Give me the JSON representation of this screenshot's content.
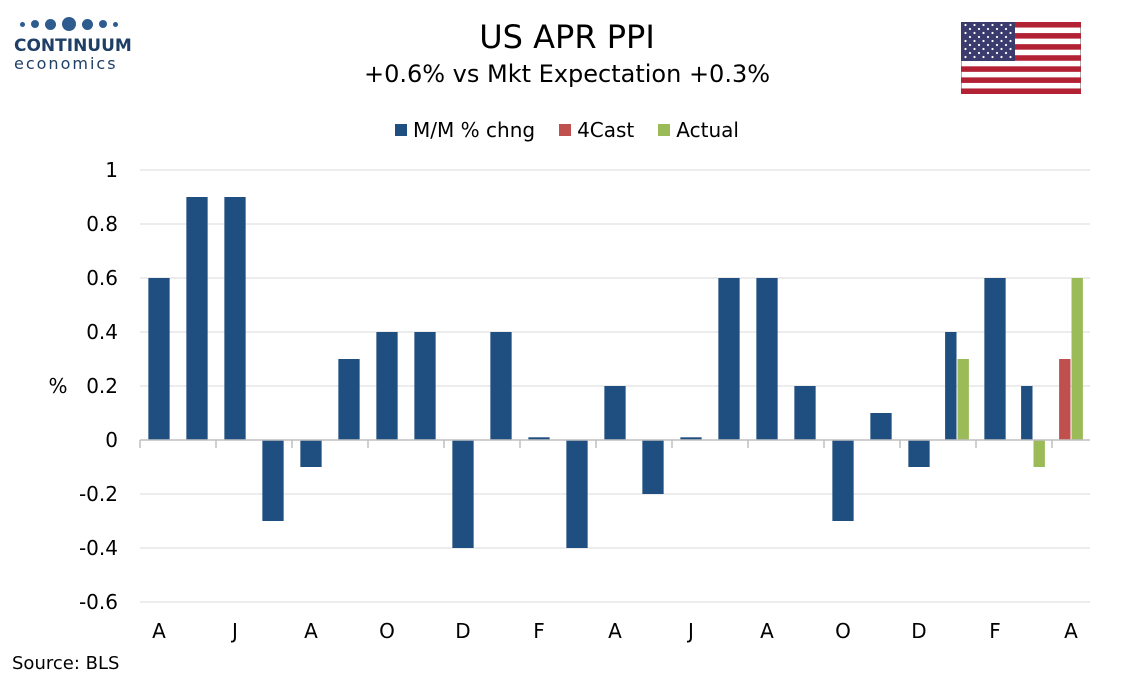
{
  "logo": {
    "name": "CONTINUUM",
    "sub": "economics"
  },
  "flag": {
    "icon": "us-flag-icon"
  },
  "source": "Source: BLS",
  "colors": {
    "mm": "#1f4e80",
    "fcast": "#c0504d",
    "actual": "#9bbb59",
    "grid": "#d9d9d9"
  },
  "chart_data": {
    "type": "bar",
    "title": "US APR PPI",
    "subtitle": "+0.6% vs Mkt Expectation +0.3%",
    "ylabel": "%",
    "ylim": [
      -0.6,
      1
    ],
    "yticks": [
      1,
      0.8,
      0.6,
      0.4,
      0.2,
      0,
      -0.2,
      -0.4,
      -0.6
    ],
    "grid": true,
    "legend_position": "top-center",
    "x_tick_labels": [
      "A",
      "J",
      "A",
      "O",
      "D",
      "F",
      "A",
      "J",
      "A",
      "O",
      "D",
      "F",
      "A"
    ],
    "series": [
      {
        "name": "M/M % chng",
        "values": [
          0.6,
          0.9,
          0.9,
          -0.3,
          -0.1,
          0.3,
          0.4,
          0.4,
          -0.4,
          0.4,
          0.01,
          -0.4,
          0.2,
          -0.2,
          0.01,
          0.6,
          0.6,
          0.2,
          -0.3,
          0.1,
          -0.1,
          0.4,
          0.6,
          0.2,
          null
        ]
      },
      {
        "name": "4Cast",
        "values": [
          null,
          null,
          null,
          null,
          null,
          null,
          null,
          null,
          null,
          null,
          null,
          null,
          null,
          null,
          null,
          null,
          null,
          null,
          null,
          null,
          null,
          null,
          null,
          null,
          0.3
        ]
      },
      {
        "name": "Actual",
        "values": [
          null,
          null,
          null,
          null,
          null,
          null,
          null,
          null,
          null,
          null,
          null,
          null,
          null,
          null,
          null,
          null,
          null,
          null,
          null,
          null,
          null,
          0.3,
          null,
          -0.1,
          0.6
        ]
      }
    ]
  }
}
